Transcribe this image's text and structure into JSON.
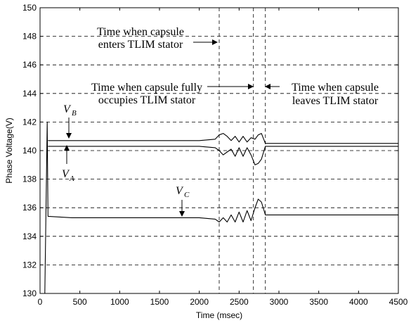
{
  "chart_data": {
    "type": "line",
    "xlabel": "Time (msec)",
    "ylabel": "Phase Voltage(V)",
    "xlim": [
      0,
      4500
    ],
    "ylim": [
      130,
      150
    ],
    "xticks": [
      0,
      500,
      1000,
      1500,
      2000,
      2500,
      3000,
      3500,
      4000,
      4500
    ],
    "yticks": [
      130,
      132,
      134,
      136,
      138,
      140,
      142,
      144,
      146,
      148,
      150
    ],
    "grid": "dashed horizontal",
    "event_lines": [
      2250,
      2680,
      2830
    ],
    "series": [
      {
        "name": "V_B",
        "x": [
          100,
          400,
          1000,
          1600,
          2000,
          2200,
          2250,
          2300,
          2350,
          2400,
          2450,
          2500,
          2550,
          2600,
          2650,
          2700,
          2740,
          2780,
          2830,
          2900,
          3500,
          4000,
          4500
        ],
        "y": [
          140.7,
          140.7,
          140.7,
          140.7,
          140.7,
          140.8,
          141.1,
          141.2,
          141.0,
          140.7,
          141.0,
          140.6,
          141.0,
          140.6,
          140.9,
          140.8,
          141.1,
          141.2,
          140.5,
          140.5,
          140.5,
          140.5,
          140.5
        ]
      },
      {
        "name": "V_A",
        "x": [
          100,
          400,
          1000,
          1600,
          2000,
          2200,
          2250,
          2300,
          2350,
          2400,
          2450,
          2500,
          2550,
          2600,
          2650,
          2700,
          2740,
          2780,
          2830,
          2900,
          3500,
          4000,
          4500
        ],
        "y": [
          140.3,
          140.3,
          140.3,
          140.3,
          140.3,
          140.2,
          140.0,
          139.7,
          139.9,
          140.1,
          139.6,
          140.2,
          139.6,
          140.2,
          139.7,
          139.0,
          139.1,
          139.4,
          140.3,
          140.3,
          140.3,
          140.3,
          140.3
        ]
      },
      {
        "name": "V_C",
        "x": [
          60,
          90,
          100,
          400,
          1000,
          1600,
          2000,
          2200,
          2250,
          2300,
          2350,
          2400,
          2450,
          2500,
          2550,
          2600,
          2650,
          2700,
          2740,
          2780,
          2830,
          2900,
          3500,
          4000,
          4500
        ],
        "y": [
          130,
          142,
          135.4,
          135.3,
          135.3,
          135.3,
          135.3,
          135.2,
          135.0,
          135.3,
          135.0,
          135.5,
          135.0,
          135.7,
          135.0,
          135.8,
          135.1,
          136.0,
          136.6,
          136.4,
          135.5,
          135.5,
          135.5,
          135.5,
          135.5
        ]
      }
    ],
    "annotations": [
      {
        "lines": [
          "Time when capsule",
          "enters TLIM stator"
        ]
      },
      {
        "lines": [
          "Time when capsule fully",
          "occupies TLIM stator"
        ]
      },
      {
        "lines": [
          "Time when capsule",
          "leaves TLIM stator"
        ]
      }
    ],
    "series_labels": {
      "vb": {
        "main": "V",
        "sub": "B"
      },
      "va": {
        "main": "V",
        "sub": "A"
      },
      "vc": {
        "main": "V",
        "sub": "C"
      }
    }
  }
}
